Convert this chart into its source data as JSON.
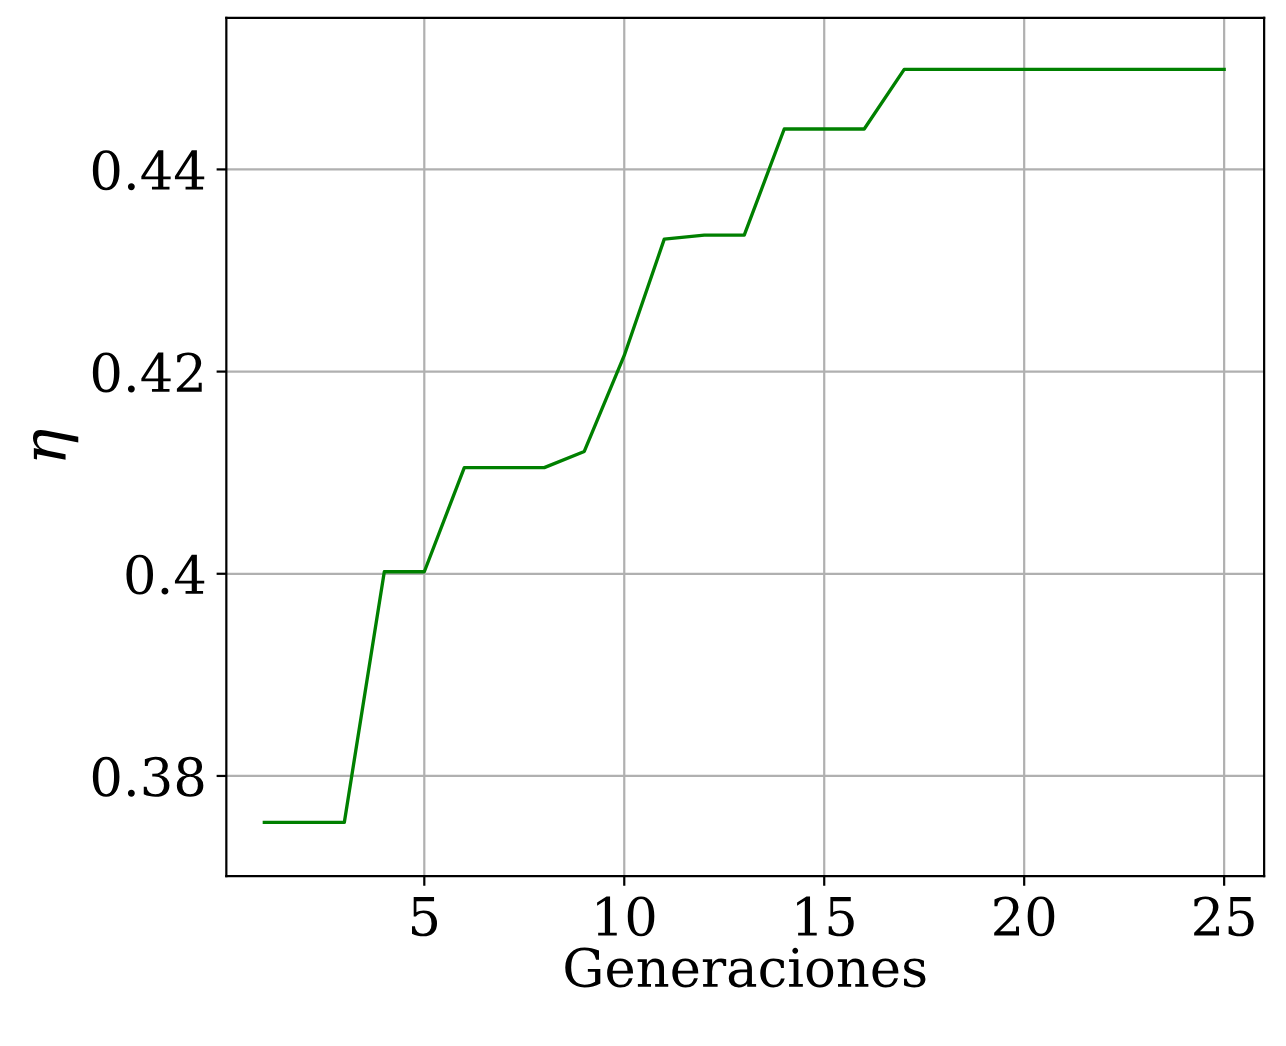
{
  "chart_data": {
    "type": "line",
    "xlabel": "Generaciones",
    "ylabel": "η",
    "x": [
      1,
      2,
      3,
      4,
      5,
      6,
      7,
      8,
      9,
      10,
      11,
      12,
      13,
      14,
      15,
      16,
      17,
      18,
      19,
      20,
      21,
      22,
      23,
      24,
      25
    ],
    "series": [
      {
        "color": "#008000",
        "values": [
          0.3754,
          0.3754,
          0.3754,
          0.4002,
          0.4002,
          0.4105,
          0.4105,
          0.4105,
          0.4121,
          0.4216,
          0.4331,
          0.4335,
          0.4335,
          0.444,
          0.444,
          0.444,
          0.4499,
          0.4499,
          0.4499,
          0.4499,
          0.4499,
          0.4499,
          0.4499,
          0.4499,
          0.4499
        ]
      }
    ],
    "xlim": [
      0.05,
      26
    ],
    "ylim": [
      0.3701,
      0.455
    ],
    "xticks": [
      5,
      10,
      15,
      20,
      25
    ],
    "yticks": [
      {
        "value": 0.38,
        "label": "0.38"
      },
      {
        "value": 0.4,
        "label": "0.4"
      },
      {
        "value": 0.42,
        "label": "0.42"
      },
      {
        "value": 0.44,
        "label": "0.44"
      }
    ],
    "grid": true,
    "legend": false,
    "marker": "none",
    "line_style": "solid"
  }
}
